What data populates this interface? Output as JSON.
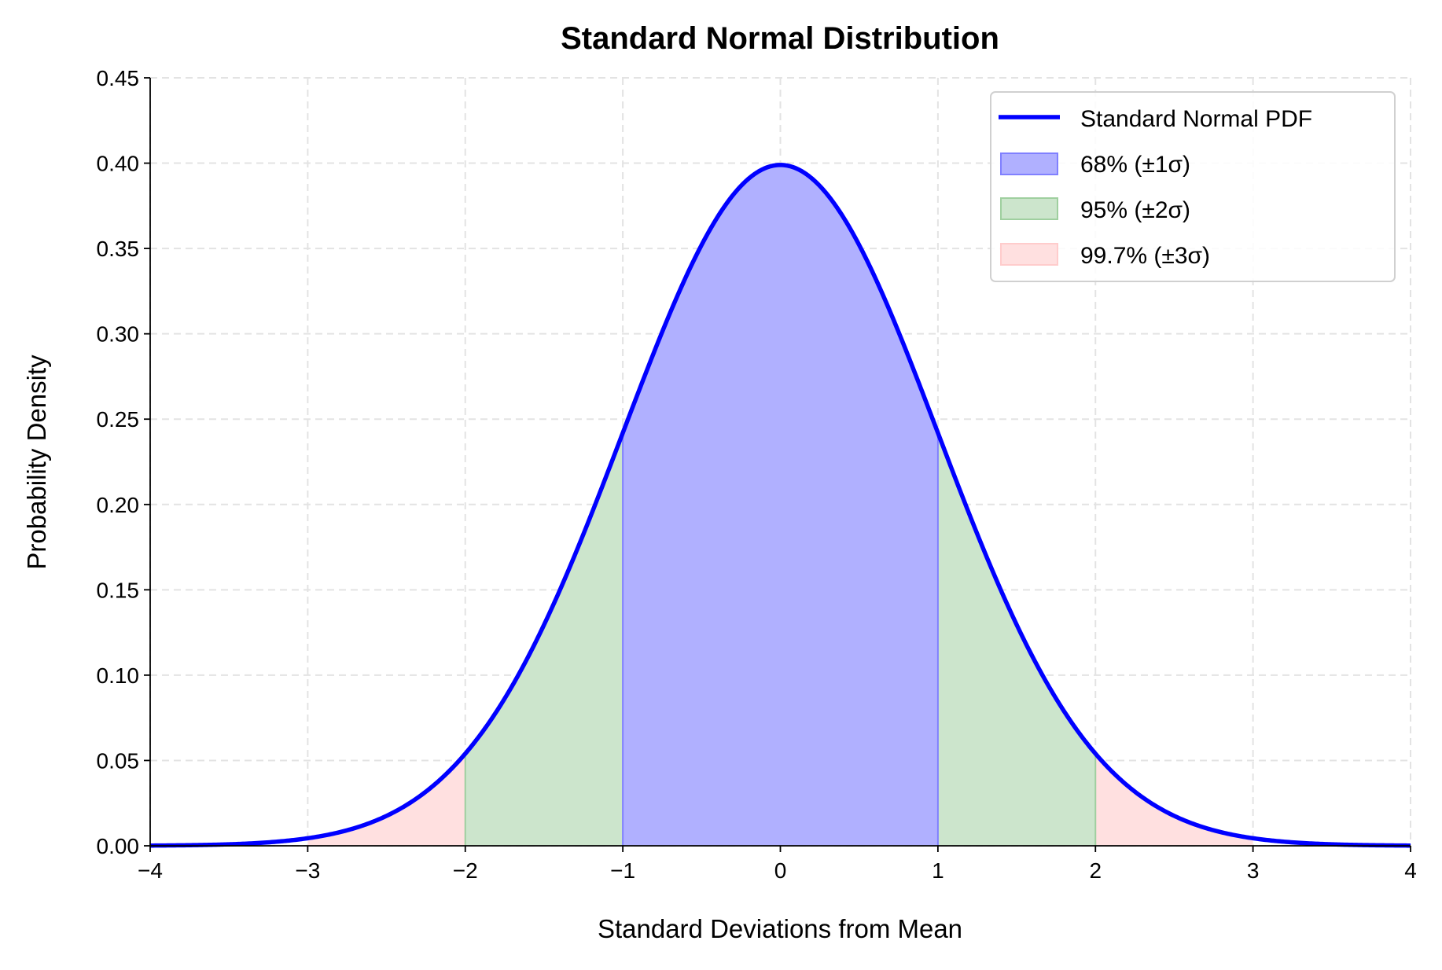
{
  "chart_data": {
    "type": "area",
    "title": "Standard Normal Distribution",
    "xlabel": "Standard Deviations from Mean",
    "ylabel": "Probability Density",
    "xlim": [
      -4,
      4
    ],
    "ylim": [
      0,
      0.45
    ],
    "xticks": [
      -4,
      -3,
      -2,
      -1,
      0,
      1,
      2,
      3,
      4
    ],
    "xtick_labels": [
      "−4",
      "−3",
      "−2",
      "−1",
      "0",
      "1",
      "2",
      "3",
      "4"
    ],
    "yticks": [
      0,
      0.05,
      0.1,
      0.15,
      0.2,
      0.25,
      0.3,
      0.35,
      0.4,
      0.45
    ],
    "ytick_labels": [
      "0.00",
      "0.05",
      "0.10",
      "0.15",
      "0.20",
      "0.25",
      "0.30",
      "0.35",
      "0.40",
      "0.45"
    ],
    "grid": true,
    "legend_position": "top-right",
    "series": [
      {
        "name": "Standard Normal PDF",
        "kind": "line",
        "function": "standard normal pdf",
        "mean": 0,
        "sd": 1,
        "color": "#0000ff"
      }
    ],
    "shaded_regions": [
      {
        "name": "99.7% (±3σ)",
        "x_range": [
          -3,
          3
        ],
        "color": "#ff0000",
        "alpha": 0.12
      },
      {
        "name": "95% (±2σ)",
        "x_range": [
          -2,
          2
        ],
        "color": "#008000",
        "alpha": 0.2
      },
      {
        "name": "68% (±1σ)",
        "x_range": [
          -1,
          1
        ],
        "color": "#0000ff",
        "alpha": 0.3
      }
    ],
    "legend": [
      "Standard Normal PDF",
      "68% (±1σ)",
      "95% (±2σ)",
      "99.7% (±3σ)"
    ]
  }
}
